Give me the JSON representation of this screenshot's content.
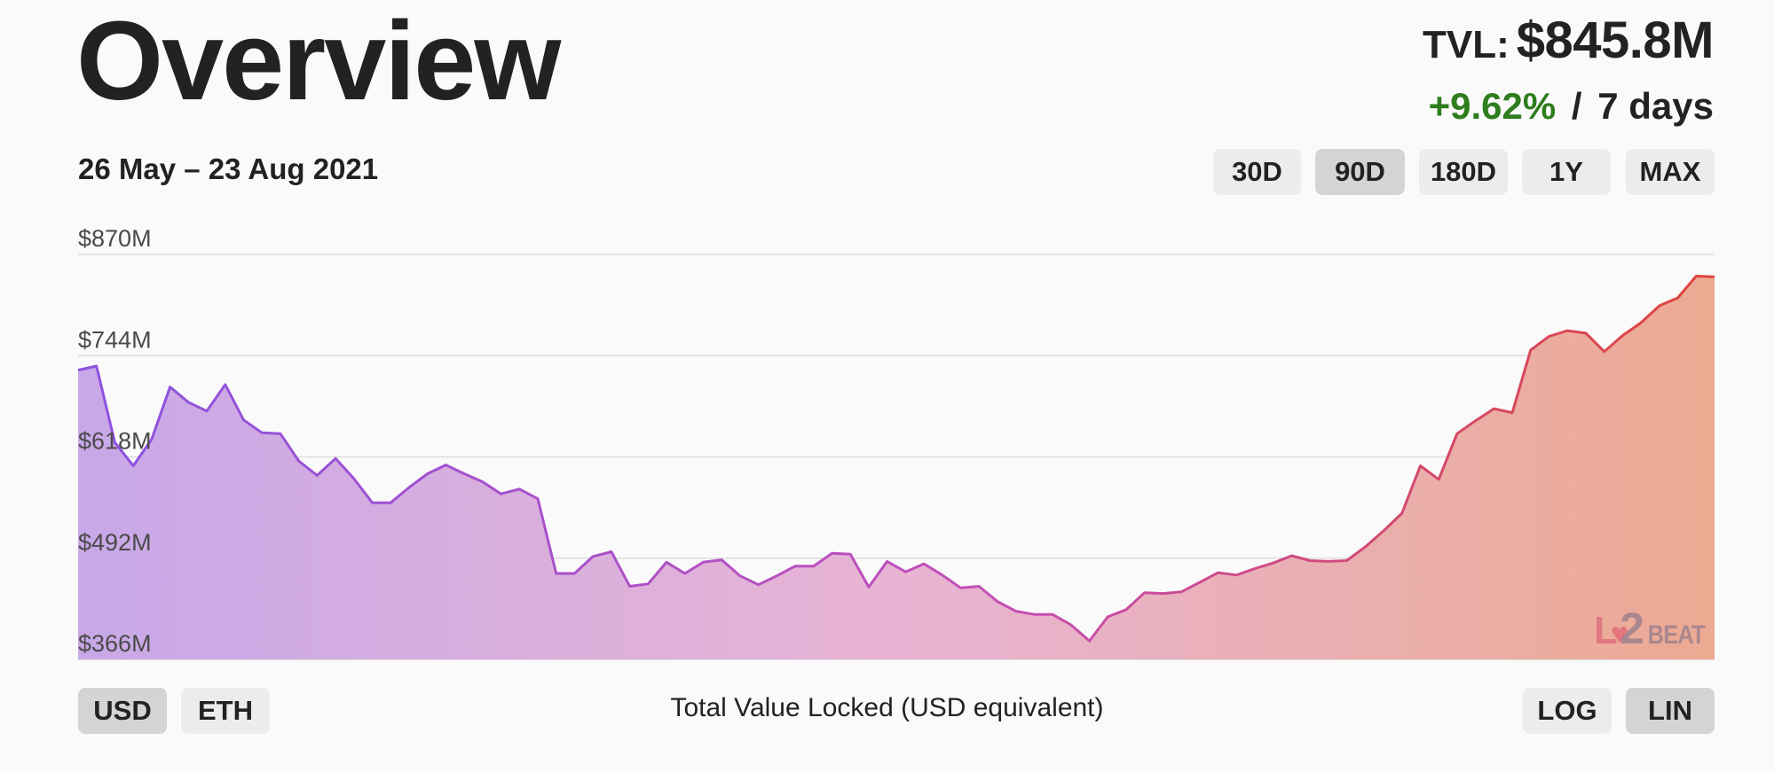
{
  "header": {
    "title": "Overview",
    "tvl_label": "TVL:",
    "tvl_value": "$845.8M",
    "change": "+9.62%",
    "change_sep": "/",
    "change_period": "7 days",
    "change_color": "#2e7d1e"
  },
  "range_label": "26 May – 23 Aug 2021",
  "time_buttons": [
    {
      "label": "30D",
      "selected": false
    },
    {
      "label": "90D",
      "selected": true
    },
    {
      "label": "180D",
      "selected": false
    },
    {
      "label": "1Y",
      "selected": false
    },
    {
      "label": "MAX",
      "selected": false
    }
  ],
  "currency_buttons": [
    {
      "label": "USD",
      "selected": true
    },
    {
      "label": "ETH",
      "selected": false
    }
  ],
  "scale_buttons": [
    {
      "label": "LOG",
      "selected": false
    },
    {
      "label": "LIN",
      "selected": true
    }
  ],
  "caption": "Total Value Locked (USD equivalent)",
  "logo": {
    "left": "L",
    "heart": "♥",
    "num": "2",
    "text": "BEAT"
  },
  "colors": {
    "line_start": "#8c52e0",
    "line_mid": "#c24fb8",
    "line_end": "#e0443c",
    "fill_start": "#c8a8e8",
    "fill_mid": "#e8b4d4",
    "fill_end": "#ecaa92"
  },
  "chart_data": {
    "type": "area",
    "title": "",
    "xlabel": "",
    "ylabel": "",
    "y_ticks": [
      "$870M",
      "$744M",
      "$618M",
      "$492M",
      "$366M"
    ],
    "y_tick_values": [
      870,
      744,
      618,
      492,
      366
    ],
    "ylim": [
      366,
      870
    ],
    "unit": "USD millions",
    "x_start": "2021-05-26",
    "x_end": "2021-08-23",
    "grid": true,
    "series": [
      {
        "values": [
          726,
          731,
          636,
          607,
          640,
          705,
          686,
          675,
          708,
          664,
          648,
          647,
          613,
          595,
          616,
          591,
          561,
          561,
          580,
          597,
          608,
          597,
          587,
          572,
          578,
          566,
          473,
          473,
          494,
          500,
          457,
          460,
          487,
          473,
          487,
          490,
          470,
          459,
          470,
          482,
          482,
          498,
          497,
          456,
          488,
          475,
          485,
          471,
          455,
          457,
          438,
          426,
          422,
          422,
          409,
          389,
          419,
          428,
          449,
          448,
          450,
          462,
          474,
          471,
          479,
          486,
          495,
          489,
          488,
          489,
          506,
          526,
          548,
          607,
          590,
          647,
          663,
          678,
          673,
          751,
          768,
          775,
          772,
          749,
          769,
          785,
          806,
          816,
          843,
          842
        ]
      }
    ]
  }
}
